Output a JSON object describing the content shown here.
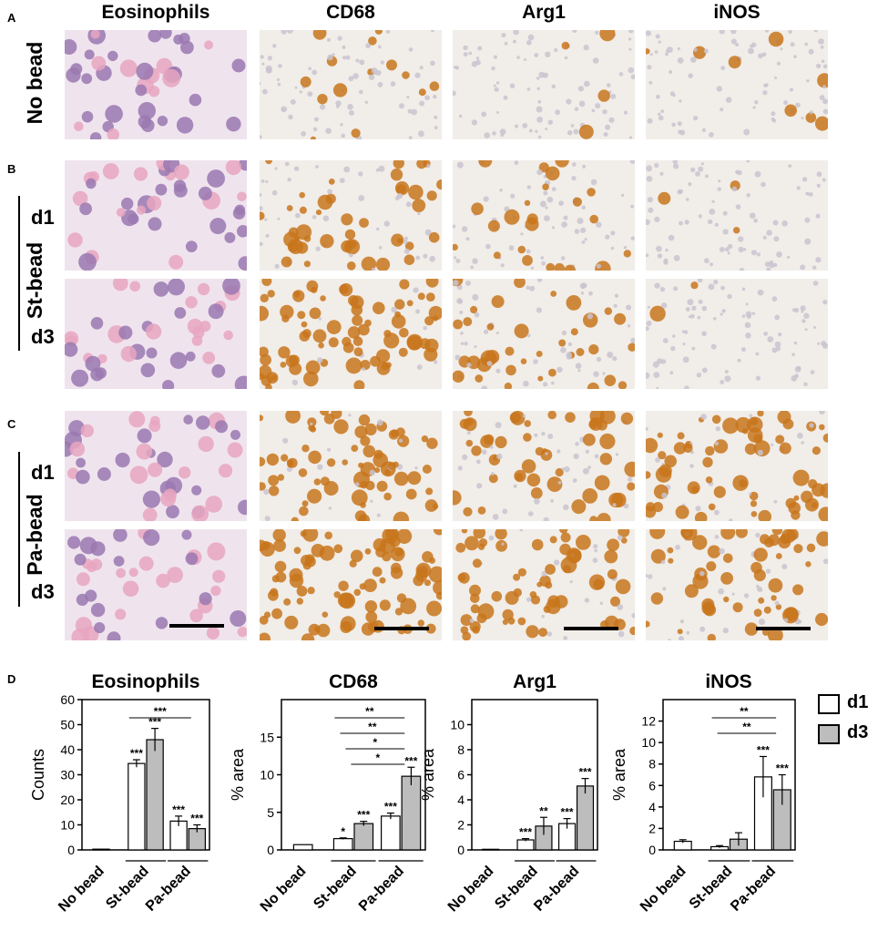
{
  "panel_letters": {
    "a": "A",
    "b": "B",
    "c": "C",
    "d": "D"
  },
  "column_titles": [
    "Eosinophils",
    "CD68",
    "Arg1",
    "iNOS"
  ],
  "row_labels": {
    "no_bead": "No bead",
    "st_bead": "St-bead",
    "pa_bead": "Pa-bead",
    "d1": "d1",
    "d3": "d3"
  },
  "colors": {
    "he_pink": "#e8a6bf",
    "he_purple": "#9a78b0",
    "ihc_bg": "#f1ede8",
    "dab_brown": "#c8761c",
    "bar_d3": "#bdbdbd",
    "bar_d1": "#ffffff"
  },
  "legend": {
    "d1": "d1",
    "d3": "d3"
  },
  "chart_data": [
    {
      "type": "bar",
      "title": "Eosinophils",
      "ylabel": "Counts",
      "ylim": [
        0,
        60
      ],
      "yticks": [
        0,
        10,
        20,
        30,
        40,
        50,
        60
      ],
      "categories": [
        "No bead",
        "St-bead",
        "Pa-bead"
      ],
      "series": [
        {
          "name": "d1",
          "values": [
            0.3,
            34.5,
            11.5
          ],
          "errors": [
            0,
            1.5,
            2.0
          ],
          "stars": [
            "",
            "***",
            "***"
          ]
        },
        {
          "name": "d3",
          "values": [
            null,
            44,
            8.5
          ],
          "errors": [
            null,
            4.5,
            1.5
          ],
          "stars": [
            "",
            "***",
            "***"
          ]
        }
      ],
      "comparisons": [
        {
          "label": "***"
        }
      ]
    },
    {
      "type": "bar",
      "title": "CD68",
      "ylabel": "% area",
      "ylim": [
        0,
        20
      ],
      "yticks": [
        0,
        5,
        10,
        15
      ],
      "categories": [
        "No bead",
        "St-bead",
        "Pa-bead"
      ],
      "series": [
        {
          "name": "d1",
          "values": [
            0.7,
            1.5,
            4.5
          ],
          "errors": [
            0,
            0.1,
            0.4
          ],
          "stars": [
            "",
            "*",
            "***"
          ]
        },
        {
          "name": "d3",
          "values": [
            null,
            3.5,
            9.8
          ],
          "errors": [
            null,
            0.3,
            1.2
          ],
          "stars": [
            "",
            "***",
            "***"
          ]
        }
      ],
      "comparisons": [
        {
          "label": "**"
        },
        {
          "label": "**"
        },
        {
          "label": "*"
        },
        {
          "label": "*"
        }
      ]
    },
    {
      "type": "bar",
      "title": "Arg1",
      "ylabel": "% area",
      "ylim": [
        0,
        12
      ],
      "yticks": [
        0,
        2,
        4,
        6,
        8,
        10
      ],
      "categories": [
        "No bead",
        "St-bead",
        "Pa-bead"
      ],
      "series": [
        {
          "name": "d1",
          "values": [
            0.05,
            0.8,
            2.1
          ],
          "errors": [
            0,
            0.1,
            0.4
          ],
          "stars": [
            "",
            "***",
            "***"
          ]
        },
        {
          "name": "d3",
          "values": [
            null,
            1.9,
            5.1
          ],
          "errors": [
            null,
            0.7,
            0.6
          ],
          "stars": [
            "",
            "**",
            "***"
          ]
        }
      ]
    },
    {
      "type": "bar",
      "title": "iNOS",
      "ylabel": "% area",
      "ylim": [
        0,
        14
      ],
      "yticks": [
        0,
        2,
        4,
        6,
        8,
        10,
        12
      ],
      "categories": [
        "No bead",
        "St-bead",
        "Pa-bead"
      ],
      "series": [
        {
          "name": "d1",
          "values": [
            0.8,
            0.3,
            6.8
          ],
          "errors": [
            0.15,
            0.1,
            1.9
          ],
          "stars": [
            "",
            "",
            "***"
          ]
        },
        {
          "name": "d3",
          "values": [
            null,
            1.0,
            5.6
          ],
          "errors": [
            null,
            0.6,
            1.4
          ],
          "stars": [
            "",
            "",
            "***"
          ]
        }
      ],
      "comparisons": [
        {
          "label": "**"
        },
        {
          "label": "**"
        }
      ]
    }
  ]
}
